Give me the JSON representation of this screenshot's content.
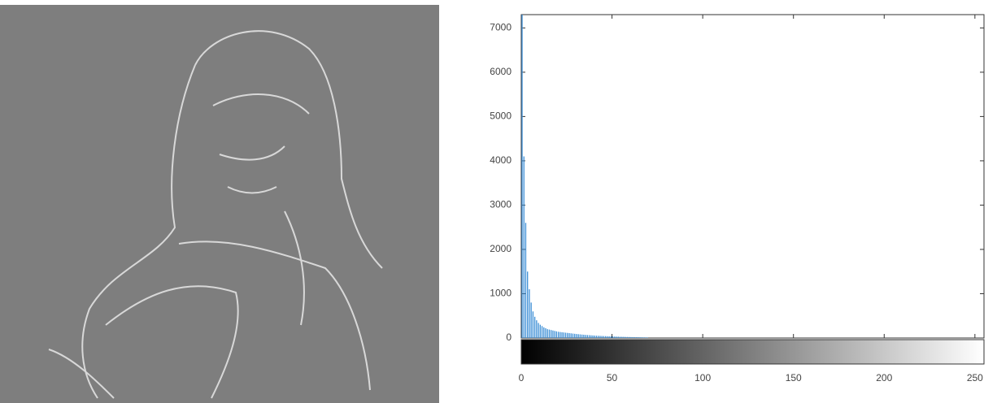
{
  "chart_data": {
    "type": "bar",
    "color": "#3d8fd6",
    "x": [
      0,
      1,
      2,
      3,
      4,
      5,
      6,
      7,
      8,
      9,
      10,
      11,
      12,
      13,
      14,
      15,
      16,
      17,
      18,
      19,
      20,
      21,
      22,
      23,
      24,
      25,
      26,
      27,
      28,
      29,
      30,
      31,
      32,
      33,
      34,
      35,
      36,
      37,
      38,
      39,
      40,
      41,
      42,
      43,
      44,
      45,
      46,
      47,
      48,
      49,
      50,
      51,
      52,
      53,
      54,
      55,
      56,
      57,
      58,
      59,
      60,
      61,
      62,
      63,
      64,
      65,
      66,
      67,
      68,
      69
    ],
    "values": [
      7300,
      4100,
      2600,
      1500,
      1100,
      800,
      600,
      480,
      400,
      340,
      300,
      270,
      240,
      220,
      200,
      190,
      180,
      170,
      160,
      150,
      140,
      135,
      130,
      125,
      120,
      115,
      110,
      105,
      100,
      95,
      90,
      86,
      82,
      78,
      74,
      70,
      67,
      64,
      61,
      58,
      55,
      52,
      50,
      48,
      46,
      44,
      42,
      40,
      38,
      36,
      35,
      33,
      31,
      30,
      28,
      27,
      26,
      24,
      23,
      22,
      21,
      20,
      19,
      18,
      17,
      16,
      15,
      14,
      13,
      12
    ],
    "xlim": [
      0,
      255
    ],
    "xticks": [
      0,
      50,
      100,
      150,
      200,
      250
    ],
    "ylim": [
      0,
      7300
    ],
    "yticks": [
      0,
      1000,
      2000,
      3000,
      4000,
      5000,
      6000,
      7000
    ]
  }
}
